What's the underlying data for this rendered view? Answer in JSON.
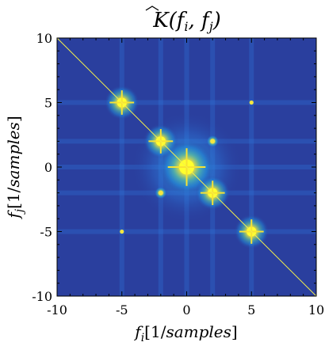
{
  "chart_data": {
    "type": "heatmap",
    "title": "K̂(f_i, f_j)",
    "title_parts": {
      "symbol": "K",
      "args": "(f",
      "sub_i": "i",
      "comma": ", f",
      "sub_j": "j",
      "close": ")"
    },
    "xlabel": "f_i[1/samples]",
    "xlabel_parts": {
      "var": "f",
      "sub": "i",
      "unit": "[1/",
      "unit_word": "samples",
      "close": "]"
    },
    "ylabel": "f_j[1/samples]",
    "ylabel_parts": {
      "var": "f",
      "sub": "j",
      "unit": "[1/",
      "unit_word": "samples",
      "close": "]"
    },
    "xlim": [
      -10,
      10
    ],
    "ylim": [
      -10,
      10
    ],
    "xticks": [
      -10,
      -5,
      0,
      5,
      10
    ],
    "yticks": [
      -10,
      -5,
      0,
      5,
      10
    ],
    "xtick_labels": [
      "-10",
      "-5",
      "0",
      "5",
      "10"
    ],
    "ytick_labels": [
      "-10",
      "-5",
      "0",
      "5",
      "10"
    ],
    "grid": false,
    "colormap": "parula",
    "background_color": "#2a3f9e",
    "peaks": [
      {
        "x": -5,
        "y": 5,
        "intensity": 1.0
      },
      {
        "x": 5,
        "y": -5,
        "intensity": 1.0
      },
      {
        "x": -2,
        "y": 2,
        "intensity": 0.9
      },
      {
        "x": 2,
        "y": -2,
        "intensity": 0.9
      },
      {
        "x": 0,
        "y": 0,
        "intensity": 1.0
      },
      {
        "x": -2,
        "y": -2,
        "intensity": 0.6
      },
      {
        "x": 2,
        "y": 2,
        "intensity": 0.6
      },
      {
        "x": -5,
        "y": -5,
        "intensity": 0.5
      },
      {
        "x": 5,
        "y": 5,
        "intensity": 0.5
      }
    ],
    "diagonal_line": {
      "from": [
        -10,
        10
      ],
      "to": [
        10,
        -10
      ],
      "color": "#f5f04a"
    }
  }
}
